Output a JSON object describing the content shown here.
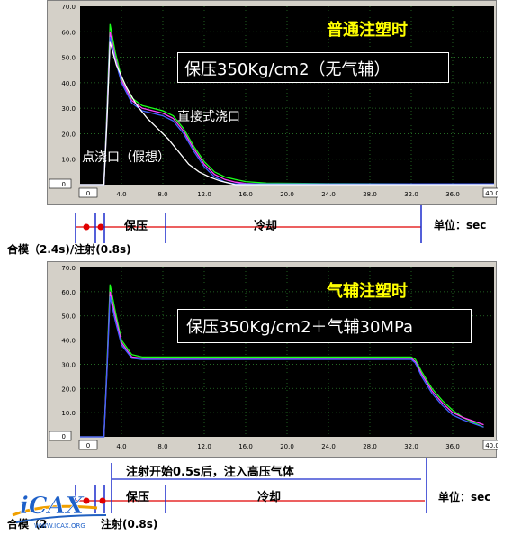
{
  "colors": {
    "plot_bg": "#000000",
    "grid": "#2a7a2a",
    "frame": "#d4d0c8",
    "title_yellow": "#ffff00",
    "curve_green": "#1aff1a",
    "curve_magenta": "#ff40ff",
    "curve_blue": "#4060ff",
    "curve_white": "#ffffff",
    "timeline_red": "#e00000",
    "timeline_blue": "#1a2acc"
  },
  "chart_data": [
    {
      "type": "line",
      "title": "普通注塑时",
      "subtitle": "保压350Kg/cm2（无气辅）",
      "annotations": [
        "直接式浇口",
        "点浇口（假想）"
      ],
      "xlim": [
        0,
        40
      ],
      "ylim": [
        0,
        70
      ],
      "x_ticks": [
        "4.0",
        "8.0",
        "12.0",
        "16.0",
        "20.0",
        "24.0",
        "28.0",
        "32.0",
        "36.0"
      ],
      "y_ticks": [
        "0.0",
        "10.0",
        "20.0",
        "30.0",
        "40.0",
        "50.0",
        "60.0",
        "70.0"
      ],
      "x_box_left": "0",
      "x_box_right": "40.0",
      "y_box": "0",
      "series": [
        {
          "color": "#1aff1a",
          "x": [
            0,
            2.3,
            2.6,
            2.9,
            3.4,
            4.0,
            5.0,
            6.0,
            7.0,
            8.0,
            9.0,
            10.0,
            11.0,
            12.0,
            13.0,
            14.0,
            15.0,
            16.0,
            18.0,
            24.0,
            32.0,
            40.0
          ],
          "y": [
            0,
            0,
            30,
            63,
            52,
            42,
            34,
            31,
            30,
            29,
            27,
            22,
            15,
            9,
            5,
            3,
            2,
            1.2,
            0.6,
            0.4,
            0.3,
            0.3
          ]
        },
        {
          "color": "#ff40ff",
          "x": [
            0,
            2.3,
            2.6,
            2.9,
            3.4,
            4.0,
            5.0,
            6.0,
            7.0,
            8.0,
            9.0,
            10.0,
            11.0,
            12.0,
            13.0,
            14.0,
            15.0,
            16.0,
            18.0,
            40.0
          ],
          "y": [
            0,
            0,
            28,
            60,
            50,
            41,
            33,
            30,
            29,
            28,
            26,
            21,
            14,
            8,
            4,
            2,
            1,
            0.5,
            0.2,
            0.2
          ]
        },
        {
          "color": "#4060ff",
          "x": [
            0,
            2.3,
            2.6,
            2.9,
            3.4,
            4.0,
            5.0,
            6.0,
            7.0,
            8.0,
            9.0,
            10.0,
            11.0,
            12.0,
            13.0,
            14.0,
            15.0,
            40.0
          ],
          "y": [
            0,
            0,
            26,
            58,
            49,
            40,
            32,
            29,
            28,
            27,
            25,
            20,
            13,
            7,
            3,
            1,
            0.3,
            0.3
          ]
        },
        {
          "color": "#ffffff",
          "x": [
            0,
            2.3,
            2.6,
            2.9,
            3.5,
            4.5,
            5.5,
            6.5,
            7.5,
            8.5,
            9.5,
            10.5,
            11.5,
            12.5,
            13.5,
            14.5,
            15.0,
            40.0
          ],
          "y": [
            0,
            0,
            25,
            56,
            47,
            38,
            31,
            26,
            22,
            18,
            13,
            8,
            5,
            3,
            1.5,
            0.5,
            0,
            0
          ]
        }
      ]
    },
    {
      "type": "line",
      "title": "气辅注塑时",
      "subtitle": "保压350Kg/cm2＋气辅30MPa",
      "xlim": [
        0,
        40
      ],
      "ylim": [
        0,
        70
      ],
      "x_ticks": [
        "4.0",
        "8.0",
        "12.0",
        "16.0",
        "20.0",
        "24.0",
        "28.0",
        "32.0",
        "36.0"
      ],
      "y_ticks": [
        "0.0",
        "10.0",
        "20.0",
        "30.0",
        "40.0",
        "50.0",
        "60.0",
        "70.0"
      ],
      "x_box_left": "0",
      "x_box_right": "40.0",
      "y_box": "0",
      "series": [
        {
          "color": "#1aff1a",
          "x": [
            0,
            2.3,
            2.6,
            2.9,
            3.4,
            4.0,
            5.0,
            6.0,
            8.0,
            16.0,
            24.0,
            32.0,
            32.4,
            33.0,
            34.0,
            35.0,
            36.0,
            37.0,
            38.0,
            39.0
          ],
          "y": [
            0,
            0,
            30,
            63,
            52,
            40,
            34,
            33,
            33,
            33,
            33,
            33,
            32,
            27,
            20,
            15,
            11,
            8,
            6,
            4
          ]
        },
        {
          "color": "#ff40ff",
          "x": [
            0,
            2.3,
            2.6,
            2.9,
            3.4,
            4.0,
            5.0,
            6.0,
            8.0,
            16.0,
            24.0,
            32.0,
            32.4,
            33.0,
            34.0,
            35.0,
            36.0,
            37.0,
            38.0,
            39.0
          ],
          "y": [
            0,
            0,
            28,
            60,
            50,
            39,
            33,
            32.5,
            32.5,
            32.5,
            32.5,
            32.5,
            31,
            26,
            19,
            14,
            10,
            8,
            6.5,
            5
          ]
        },
        {
          "color": "#4060ff",
          "x": [
            0,
            2.3,
            2.6,
            2.9,
            3.4,
            4.0,
            5.0,
            6.0,
            8.0,
            16.0,
            24.0,
            32.0,
            32.4,
            33.0,
            34.0,
            35.0,
            36.0,
            37.0,
            38.0,
            39.0
          ],
          "y": [
            0,
            0,
            27,
            58,
            48,
            38,
            32.5,
            32,
            32,
            32,
            32,
            32,
            30.5,
            25,
            18,
            13,
            9,
            7,
            5.5,
            4
          ]
        }
      ]
    }
  ],
  "timeline_top": {
    "labels": {
      "hold": "保压",
      "cool": "冷却",
      "unit": "单位：sec",
      "mold": "合模（2.4s)/注射(0.8s)"
    }
  },
  "timeline_bottom": {
    "labels": {
      "note": "注射开始0.5s后，注入高压气体",
      "hold": "保压",
      "cool": "冷却",
      "unit": "单位：sec",
      "mold_partial": "合模（2",
      "inject_partial": "注射(0.8s)"
    }
  },
  "logo": {
    "text": "iCAX",
    "url_text": "WWW.ICAX.ORG"
  }
}
